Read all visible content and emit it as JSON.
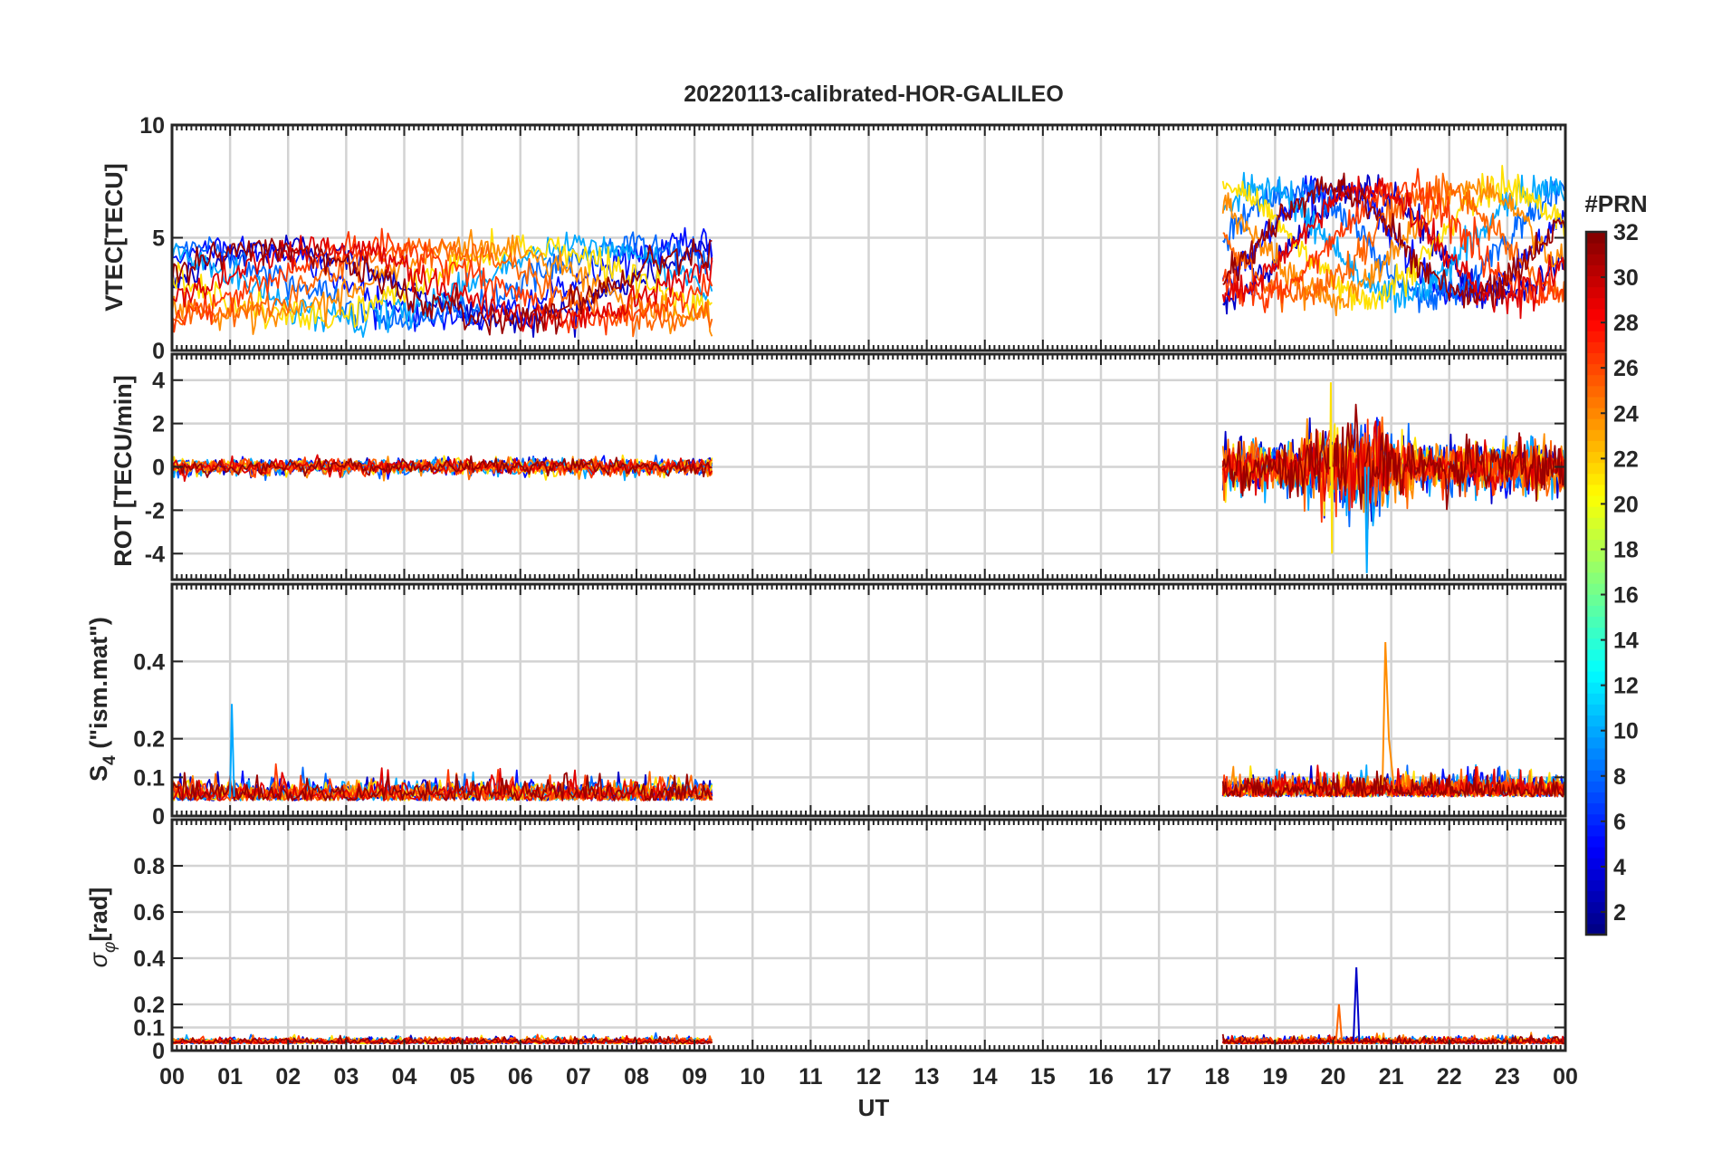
{
  "chart_data": {
    "title": "20220113-calibrated-HOR-GALILEO",
    "type": "line",
    "xlabel": "UT",
    "x_tick_labels": [
      "00",
      "01",
      "02",
      "03",
      "04",
      "05",
      "06",
      "07",
      "08",
      "09",
      "10",
      "11",
      "12",
      "13",
      "14",
      "15",
      "16",
      "17",
      "18",
      "19",
      "20",
      "21",
      "22",
      "23",
      "00"
    ],
    "xlim_hours": [
      0,
      24
    ],
    "grid": true,
    "data_segments_hours": [
      [
        0,
        9.3
      ],
      [
        18.1,
        24
      ]
    ],
    "panels": [
      {
        "id": "vtec",
        "ylabel": "VTEC[TECU]",
        "ylim": [
          0,
          10
        ],
        "yticks": [
          0,
          5,
          10
        ],
        "ytick_labels": [
          "0",
          "5",
          "10"
        ],
        "series_summary": "VTEC about 1–6 TECU during 00–09 UT; 2–9 TECU during 18–24 UT"
      },
      {
        "id": "rot",
        "ylabel": "ROT [TECU/min]",
        "ylim": [
          -5.2,
          5.2
        ],
        "yticks": [
          -4,
          -2,
          0,
          2,
          4
        ],
        "ytick_labels": [
          "-4",
          "-2",
          "0",
          "2",
          "4"
        ],
        "series_summary": "ROT mostly within ±1 TECU/min; spikes to about +3.9 and -4.0 near 20 UT, -4.9 near 20.6 UT"
      },
      {
        "id": "s4",
        "ylabel_main": "S",
        "ylabel_sub": "4",
        "ylabel_rest": " (\"ism.mat\")",
        "ylim": [
          0,
          0.6
        ],
        "yticks": [
          0,
          0.1,
          0.2,
          0.4
        ],
        "ytick_labels": [
          "0",
          "0.1",
          "0.2",
          "0.4"
        ],
        "series_summary": "S4 mostly below 0.15; peaks about 0.29 at 01 UT and 0.45 near 20.9 UT"
      },
      {
        "id": "sigma",
        "ylabel_main": "σ",
        "ylabel_sub": "φ",
        "ylabel_rest": "[rad]",
        "ylim": [
          0,
          1
        ],
        "yticks": [
          0,
          0.1,
          0.2,
          0.4,
          0.6,
          0.8
        ],
        "ytick_labels": [
          "0",
          "0.1",
          "0.2",
          "0.4",
          "0.6",
          "0.8"
        ],
        "series_summary": "σφ mostly below 0.1 rad; peak about 0.36 rad near 20.4 UT"
      }
    ],
    "colorbar": {
      "label": "#PRN",
      "range": [
        1,
        32
      ],
      "ticks": [
        2,
        4,
        6,
        8,
        10,
        12,
        14,
        16,
        18,
        20,
        22,
        24,
        26,
        28,
        30,
        32
      ],
      "colormap": "jet"
    },
    "series": [
      {
        "prn": 2,
        "color": "#0000c8"
      },
      {
        "prn": 4,
        "color": "#0010ff"
      },
      {
        "prn": 7,
        "color": "#0068ff"
      },
      {
        "prn": 10,
        "color": "#00a8ff"
      },
      {
        "prn": 20,
        "color": "#ffe000"
      },
      {
        "prn": 24,
        "color": "#ff8c00"
      },
      {
        "prn": 25,
        "color": "#ff6400"
      },
      {
        "prn": 27,
        "color": "#ff3800"
      },
      {
        "prn": 29,
        "color": "#e00000"
      },
      {
        "prn": 31,
        "color": "#9a0000"
      }
    ]
  }
}
